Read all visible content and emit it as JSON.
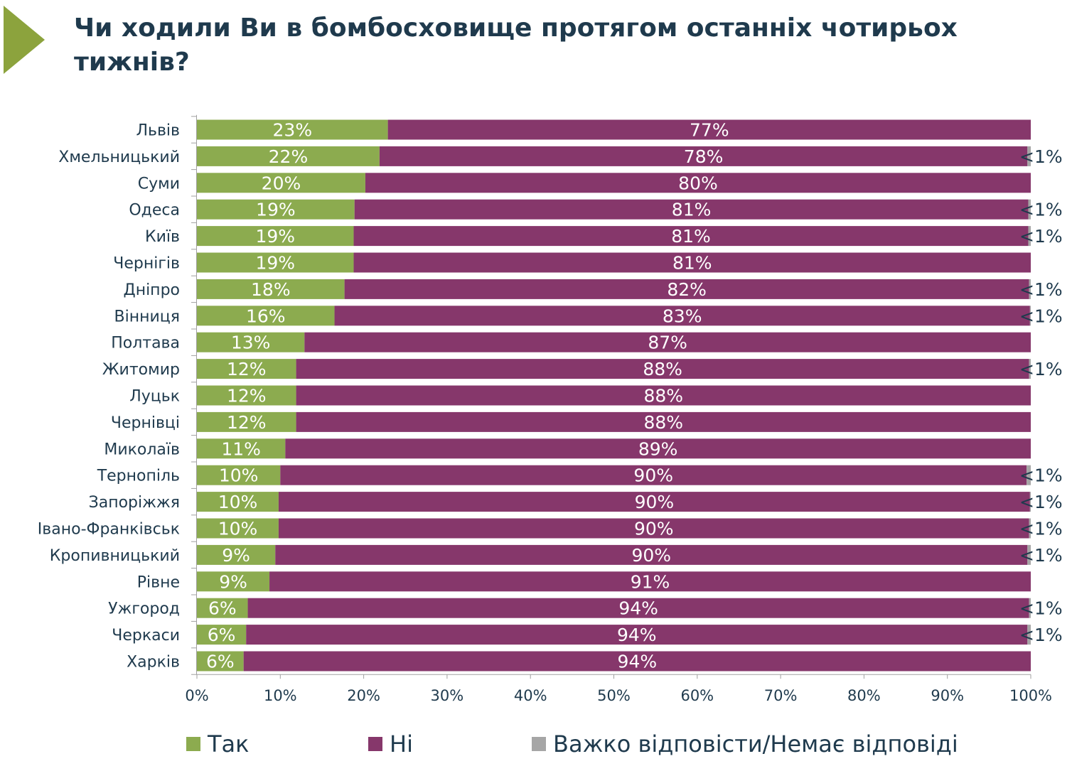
{
  "title": "Чи ходили Ви в бомбосховище протягом останніх чотирьох тижнів?",
  "colors": {
    "accent": "#8ca33d",
    "title": "#1f3a4d",
    "yes": "#8cab4f",
    "no": "#86376b",
    "dk": "#a6a6a6"
  },
  "legend": [
    {
      "key": "yes",
      "label": "Так",
      "color": "#8cab4f"
    },
    {
      "key": "no",
      "label": "Ні",
      "color": "#86376b"
    },
    {
      "key": "dk",
      "label": "Важко відповісти/Немає відповіді",
      "color": "#a6a6a6"
    }
  ],
  "chart_data": {
    "type": "bar",
    "orientation": "horizontal",
    "stacked": true,
    "categories": [
      "Львів",
      "Хмельницький",
      "Суми",
      "Одеса",
      "Київ",
      "Чернігів",
      "Дніпро",
      "Вінниця",
      "Полтава",
      "Житомир",
      "Луцьк",
      "Чернівці",
      "Миколаїв",
      "Тернопіль",
      "Запоріжжя",
      "Івано-Франківськ",
      "Кропивницький",
      "Рівне",
      "Ужгород",
      "Черкаси",
      "Харків"
    ],
    "series": [
      {
        "name": "Так",
        "values": [
          22.9,
          21.9,
          20.2,
          18.9,
          18.8,
          18.8,
          17.7,
          16.5,
          12.9,
          11.9,
          11.9,
          11.9,
          10.6,
          10.0,
          9.8,
          9.8,
          9.4,
          8.7,
          6.1,
          5.9,
          5.6
        ],
        "labels": [
          "23%",
          "22%",
          "20%",
          "19%",
          "19%",
          "19%",
          "18%",
          "16%",
          "13%",
          "12%",
          "12%",
          "12%",
          "11%",
          "10%",
          "10%",
          "10%",
          "9%",
          "9%",
          "6%",
          "6%",
          "6%"
        ]
      },
      {
        "name": "Ні",
        "values": [
          77.1,
          77.7,
          79.8,
          80.8,
          80.9,
          81.2,
          82.1,
          83.4,
          87.1,
          87.9,
          88.1,
          88.1,
          89.4,
          89.5,
          90.1,
          90.0,
          90.2,
          91.3,
          93.7,
          93.7,
          94.4
        ],
        "labels": [
          "77%",
          "78%",
          "80%",
          "81%",
          "81%",
          "81%",
          "82%",
          "83%",
          "87%",
          "88%",
          "88%",
          "88%",
          "89%",
          "90%",
          "90%",
          "90%",
          "90%",
          "91%",
          "94%",
          "94%",
          "94%"
        ]
      },
      {
        "name": "Важко відповісти/Немає відповіді",
        "values": [
          0,
          0.4,
          0,
          0.3,
          0.3,
          0,
          0.2,
          0.1,
          0,
          0.2,
          0,
          0,
          0,
          0.5,
          0.1,
          0.2,
          0.4,
          0,
          0.2,
          0.4,
          0
        ],
        "labels": [
          "",
          "<1%",
          "",
          "<1%",
          "<1%",
          "",
          "<1%",
          "<1%",
          "",
          "<1%",
          "",
          "",
          "",
          "<1%",
          "<1%",
          "<1%",
          "<1%",
          "",
          "<1%",
          "<1%",
          ""
        ]
      }
    ],
    "x_ticks": [
      "0%",
      "10%",
      "20%",
      "30%",
      "40%",
      "50%",
      "60%",
      "70%",
      "80%",
      "90%",
      "100%"
    ],
    "xlim": [
      0,
      100
    ],
    "grid": false,
    "legend_position": "bottom"
  }
}
